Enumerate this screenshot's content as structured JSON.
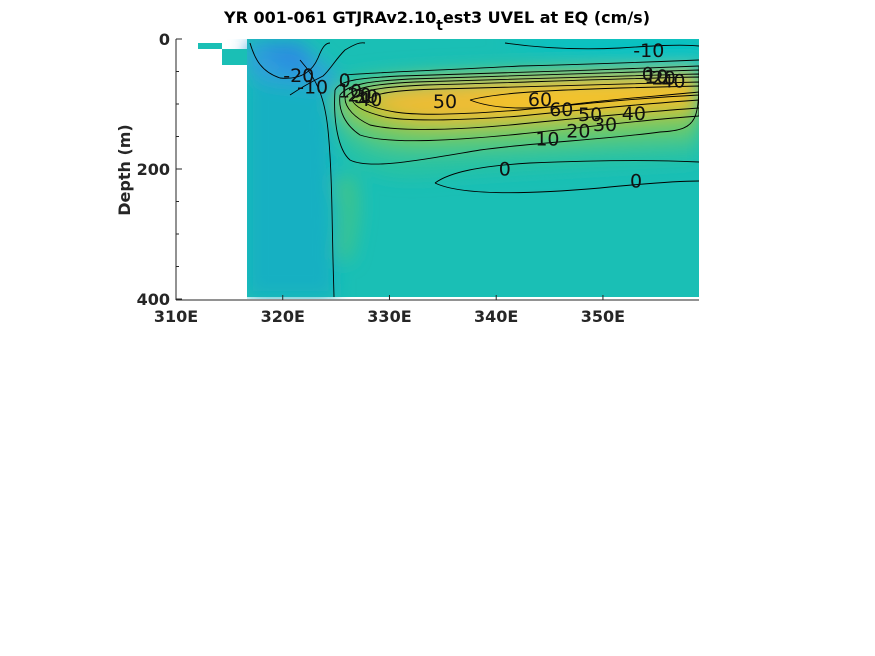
{
  "chart_data": {
    "type": "contour",
    "title": "YR 001-061 GTJRAv2.10",
    "title_subscript": "t",
    "title_rest": "est3 UVEL at EQ (cm/s)",
    "xlabel": "",
    "ylabel": "Depth (m)",
    "xlim": [
      310,
      359
    ],
    "ylim": [
      400,
      0
    ],
    "x_ticks": [
      310,
      320,
      330,
      340,
      350
    ],
    "x_tick_labels": [
      "310E",
      "320E",
      "330E",
      "340E",
      "350E"
    ],
    "y_ticks": [
      0,
      200,
      400
    ],
    "y_tick_labels": [
      "0",
      "200",
      "400"
    ],
    "land_mask_edge_lon": 316.8,
    "contour_levels": [
      -20,
      -10,
      0,
      10,
      20,
      30,
      40,
      50,
      60
    ],
    "contour_labels": [
      {
        "text": "-20",
        "lon": 321.5,
        "depth": 55
      },
      {
        "text": "-10",
        "lon": 322.8,
        "depth": 73
      },
      {
        "text": "0",
        "lon": 325.8,
        "depth": 63
      },
      {
        "text": "10",
        "lon": 326.3,
        "depth": 79
      },
      {
        "text": "20",
        "lon": 327.2,
        "depth": 85
      },
      {
        "text": "30",
        "lon": 327.8,
        "depth": 88
      },
      {
        "text": "40",
        "lon": 328.2,
        "depth": 92
      },
      {
        "text": "50",
        "lon": 335.2,
        "depth": 95
      },
      {
        "text": "60",
        "lon": 344.1,
        "depth": 92
      },
      {
        "text": "60",
        "lon": 346.1,
        "depth": 108
      },
      {
        "text": "50",
        "lon": 348.8,
        "depth": 115
      },
      {
        "text": "40",
        "lon": 352.9,
        "depth": 114
      },
      {
        "text": "30",
        "lon": 350.2,
        "depth": 131
      },
      {
        "text": "20",
        "lon": 347.7,
        "depth": 141
      },
      {
        "text": "10",
        "lon": 344.8,
        "depth": 153
      },
      {
        "text": "0",
        "lon": 340.8,
        "depth": 199
      },
      {
        "text": "0",
        "lon": 353.1,
        "depth": 218
      },
      {
        "text": "-10",
        "lon": 354.3,
        "depth": 17
      },
      {
        "text": "0",
        "lon": 354.2,
        "depth": 53
      },
      {
        "text": "10",
        "lon": 355.0,
        "depth": 57
      },
      {
        "text": "20",
        "lon": 355.7,
        "depth": 59
      },
      {
        "text": "40",
        "lon": 356.6,
        "depth": 64
      }
    ],
    "colormap": "parula",
    "color_range": [
      -60,
      80
    ]
  }
}
